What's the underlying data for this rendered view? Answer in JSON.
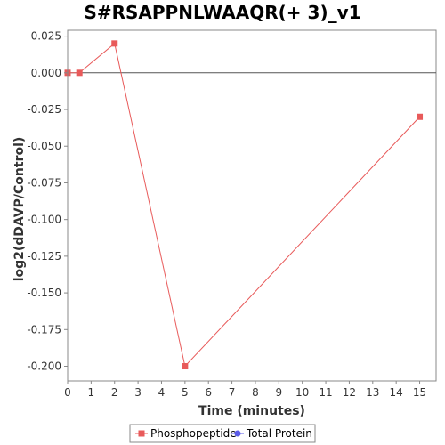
{
  "chart_data": {
    "type": "line",
    "title": "S#RSAPPNLWAAQR(+ 3)_v1",
    "xlabel": "Time (minutes)",
    "ylabel": "log2(dDAVP/Control)",
    "xlim": [
      0,
      15.7
    ],
    "ylim": [
      -0.21,
      0.029
    ],
    "x_ticks": [
      0,
      1,
      2,
      3,
      4,
      5,
      6,
      7,
      8,
      9,
      10,
      11,
      12,
      13,
      14,
      15
    ],
    "y_ticks": [
      0.025,
      0.0,
      -0.025,
      -0.05,
      -0.075,
      -0.1,
      -0.125,
      -0.15,
      -0.175,
      -0.2
    ],
    "y_tick_labels": [
      "0.025",
      "0.000",
      "-0.025",
      "-0.050",
      "-0.075",
      "-0.100",
      "-0.125",
      "-0.150",
      "-0.175",
      "-0.200"
    ],
    "zero_line": true,
    "grid": false,
    "legend_position": "bottom",
    "series": [
      {
        "name": "Phosphopeptide",
        "color": "#e85a5a",
        "marker": "square",
        "x": [
          0,
          0.5,
          2,
          5,
          15
        ],
        "y": [
          0.0,
          0.0,
          0.02,
          -0.2,
          -0.03
        ]
      },
      {
        "name": "Total Protein",
        "color": "#5a5ae8",
        "marker": "circle",
        "x": [],
        "y": []
      }
    ]
  }
}
